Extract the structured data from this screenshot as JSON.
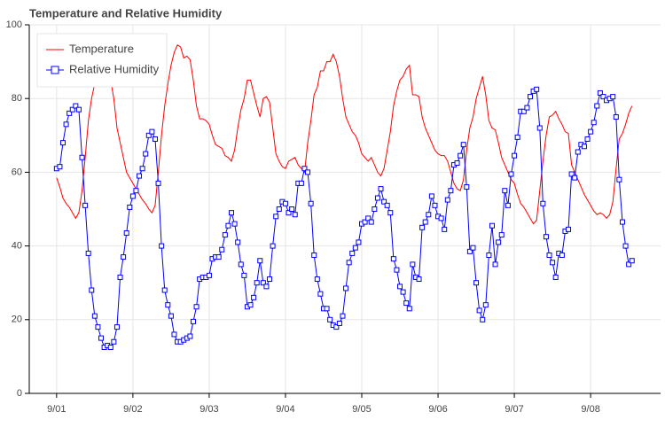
{
  "chart_data": {
    "type": "line",
    "title": "Temperature and Relative Humidity",
    "x": [
      0,
      1,
      2,
      3,
      4,
      5,
      6,
      7,
      8,
      9,
      10,
      11,
      12,
      13,
      14,
      15,
      16,
      17,
      18,
      19,
      20,
      21,
      22,
      23,
      24,
      25,
      26,
      27,
      28,
      29,
      30,
      31,
      32,
      33,
      34,
      35,
      36,
      37,
      38,
      39,
      40,
      41,
      42,
      43,
      44,
      45,
      46,
      47,
      48,
      49,
      50,
      51,
      52,
      53,
      54,
      55,
      56,
      57,
      58,
      59,
      60,
      61,
      62,
      63,
      64,
      65,
      66,
      67,
      68,
      69,
      70,
      71,
      72,
      73,
      74,
      75,
      76,
      77,
      78,
      79,
      80,
      81,
      82,
      83,
      84,
      85,
      86,
      87,
      88,
      89,
      90,
      91,
      92,
      93,
      94,
      95,
      96,
      97,
      98,
      99,
      100,
      101,
      102,
      103,
      104,
      105,
      106,
      107,
      108,
      109,
      110,
      111,
      112,
      113,
      114,
      115,
      116,
      117,
      118,
      119,
      120,
      121,
      122,
      123,
      124,
      125,
      126,
      127,
      128,
      129,
      130,
      131,
      132,
      133,
      134,
      135,
      136,
      137,
      138,
      139,
      140,
      141,
      142,
      143,
      144,
      145,
      146,
      147,
      148,
      149,
      150,
      151,
      152,
      153,
      154,
      155,
      156,
      157,
      158,
      159,
      160,
      161,
      162,
      163,
      164,
      165,
      166,
      167,
      168,
      169,
      170,
      171,
      172,
      173,
      174,
      175,
      176,
      177,
      178,
      179,
      180,
      181
    ],
    "series": [
      {
        "name": "Temperature",
        "color": "#ff0000",
        "marker": false,
        "values": [
          58.5,
          56,
          53,
          51.5,
          50.5,
          49,
          47.5,
          49,
          55,
          64,
          74,
          80,
          84,
          87,
          88.5,
          89.5,
          88.5,
          85,
          80,
          72,
          68,
          64,
          60,
          58.5,
          57,
          55.5,
          54,
          52.5,
          51.5,
          50,
          49,
          51,
          60,
          70,
          78,
          84,
          89,
          92.5,
          94.5,
          94,
          91,
          91.5,
          90.5,
          85,
          78,
          74.5,
          74.5,
          74,
          73,
          70,
          67.5,
          67,
          66.5,
          64.5,
          64,
          63,
          66,
          72,
          77,
          80,
          85,
          85,
          81.5,
          78,
          75,
          80,
          80.5,
          79,
          72,
          65,
          63,
          61.5,
          61,
          63,
          63.5,
          64,
          62,
          61,
          60,
          68,
          74,
          81,
          83,
          87.5,
          87.5,
          90,
          90,
          92,
          90,
          86,
          80,
          75,
          73,
          71,
          70,
          68,
          65,
          64,
          63,
          64,
          62,
          60,
          59,
          61,
          66,
          71,
          78,
          82,
          85,
          86,
          88,
          89,
          81,
          81,
          80.5,
          75,
          72,
          70,
          68,
          66,
          65,
          64.5,
          64.5,
          63,
          60,
          57,
          55.5,
          55,
          58,
          66,
          72,
          75,
          80,
          83,
          86,
          81,
          74,
          72,
          71.5,
          68,
          64,
          62,
          60,
          58,
          57,
          54,
          51.5,
          50.5,
          49,
          47.5,
          46,
          47,
          55,
          63,
          70,
          75,
          75.5,
          76.5,
          74.5,
          73,
          71,
          70.5,
          62,
          60,
          58,
          56,
          54,
          52.5,
          51,
          49.5,
          48.5,
          49,
          48.5,
          47.5,
          48.5,
          52,
          61,
          69,
          70.5,
          73,
          76,
          78
        ]
      },
      {
        "name": "Relative Humidity",
        "color": "#0000ff",
        "marker": true,
        "values": [
          61,
          61.5,
          68,
          73,
          76,
          77,
          78,
          77,
          64,
          51,
          38,
          28,
          21,
          18,
          15,
          12.5,
          13,
          12.5,
          14,
          18,
          31.5,
          37,
          43.5,
          50.5,
          53.5,
          55,
          59,
          61,
          65,
          70,
          71,
          69,
          57,
          40,
          28,
          24,
          21,
          16,
          14,
          14,
          14.5,
          15,
          15.5,
          19.5,
          23.5,
          31,
          31.5,
          31.5,
          32,
          36.5,
          37,
          37,
          39,
          43,
          45.5,
          49,
          46,
          41,
          35,
          32,
          23.5,
          24,
          26,
          30,
          36,
          30,
          29,
          31,
          40,
          48,
          50,
          52,
          51.5,
          49,
          50,
          48.5,
          57,
          57,
          61,
          60,
          51.5,
          37.5,
          31,
          27,
          23,
          23,
          20,
          18.5,
          18,
          19,
          21,
          28.5,
          35.5,
          38,
          39.5,
          41,
          46,
          46.5,
          47.5,
          46.5,
          50,
          53,
          55.5,
          52,
          51,
          49,
          36.5,
          33.5,
          29,
          27.5,
          24.5,
          23,
          35,
          31.5,
          31,
          45,
          46.5,
          48.5,
          53.5,
          51,
          48,
          47.5,
          44.5,
          52.5,
          55,
          62,
          62.5,
          64.5,
          67.5,
          56,
          38.5,
          39.5,
          30,
          22.5,
          20,
          24,
          37.5,
          45.5,
          35,
          41,
          43,
          55,
          51,
          59.5,
          64.5,
          69.5,
          76.5,
          76.5,
          77.5,
          80.5,
          82,
          82.5,
          72,
          51.5,
          42.5,
          37.5,
          35.5,
          31.5,
          38,
          37.5,
          44,
          44.5,
          59.5,
          58.5,
          65.5,
          67.5,
          67,
          69,
          71,
          73.5,
          78,
          81.5,
          80.5,
          79.5,
          80,
          80.5,
          75,
          58,
          46.5,
          40,
          35,
          36
        ]
      }
    ],
    "xlim": [
      -8.6,
      190
    ],
    "ylim": [
      0,
      100
    ],
    "xticks": [
      {
        "value": 0,
        "label": "9/01"
      },
      {
        "value": 24,
        "label": "9/02"
      },
      {
        "value": 48,
        "label": "9/03"
      },
      {
        "value": 72,
        "label": "9/04"
      },
      {
        "value": 96,
        "label": "9/05"
      },
      {
        "value": 120,
        "label": "9/06"
      },
      {
        "value": 144,
        "label": "9/07"
      },
      {
        "value": 168,
        "label": "9/08"
      }
    ],
    "yticks": [
      0,
      20,
      40,
      60,
      80,
      100
    ],
    "grid": true,
    "legend": "top-left"
  }
}
